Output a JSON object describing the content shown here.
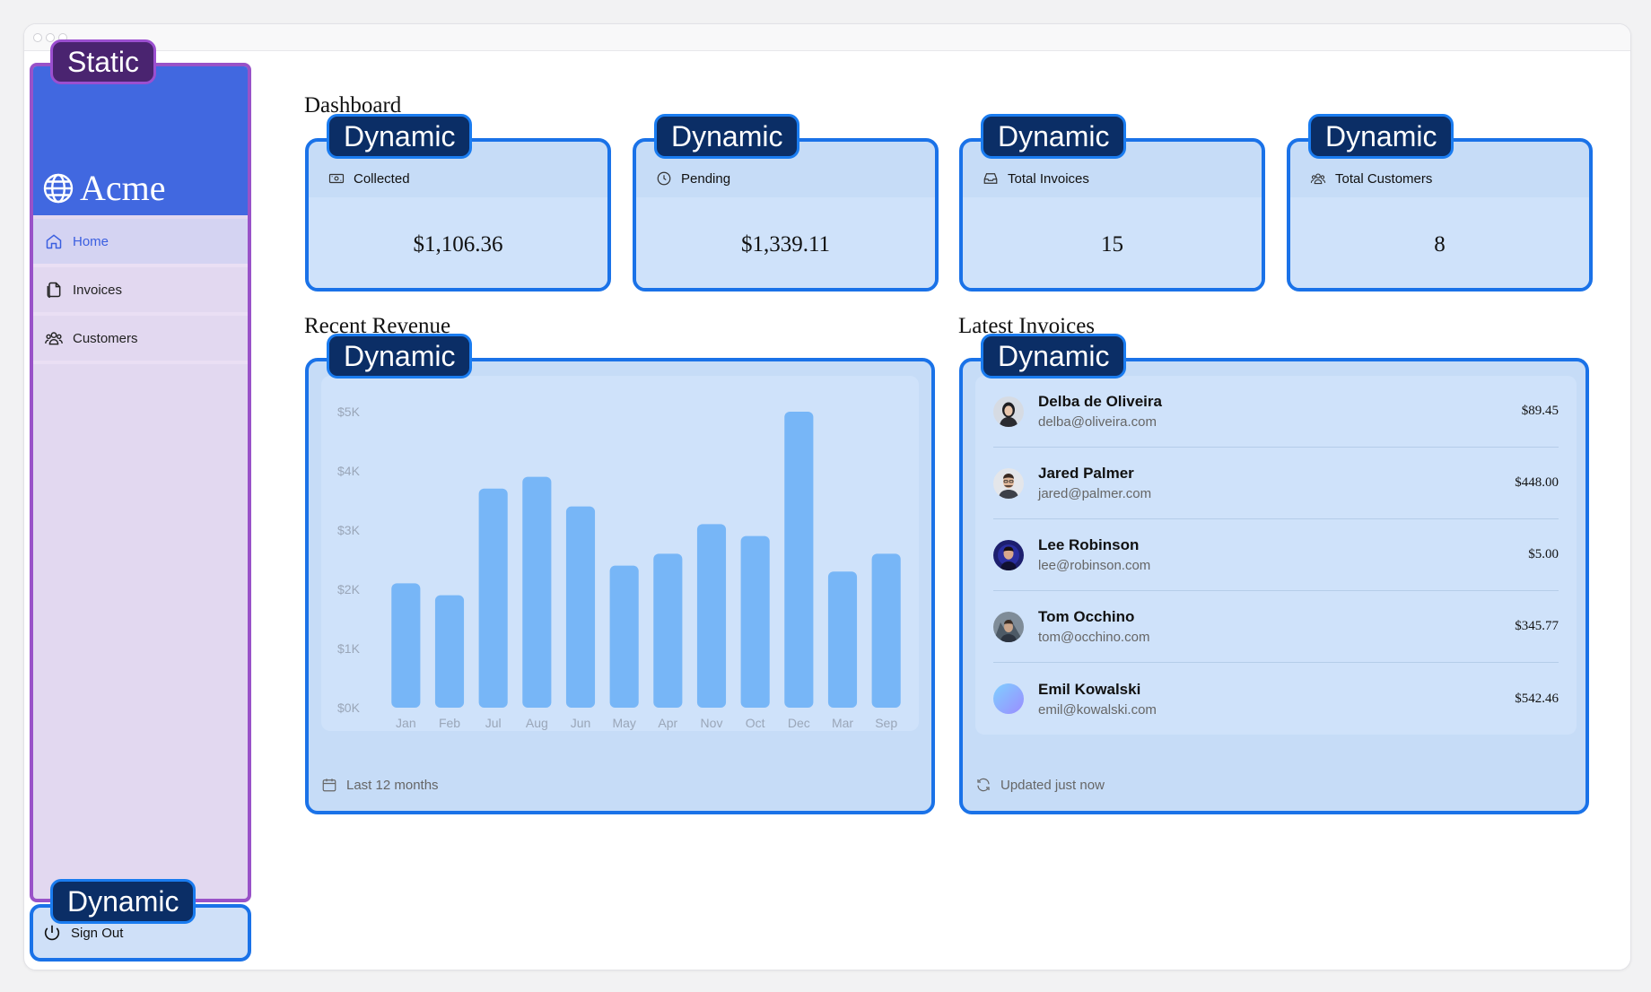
{
  "overlays": {
    "static": "Static",
    "dynamic": "Dynamic"
  },
  "sidebar": {
    "brand": "Acme",
    "items": [
      {
        "label": "Home",
        "icon": "home-icon"
      },
      {
        "label": "Invoices",
        "icon": "document-icon"
      },
      {
        "label": "Customers",
        "icon": "users-icon"
      }
    ],
    "sign_out": "Sign Out"
  },
  "main": {
    "title": "Dashboard",
    "cards": [
      {
        "label": "Collected",
        "value": "$1,106.36",
        "icon": "banknote-icon"
      },
      {
        "label": "Pending",
        "value": "$1,339.11",
        "icon": "clock-icon"
      },
      {
        "label": "Total Invoices",
        "value": "15",
        "icon": "inbox-icon"
      },
      {
        "label": "Total Customers",
        "value": "8",
        "icon": "users-icon"
      }
    ],
    "revenue": {
      "title": "Recent Revenue",
      "footer": "Last 12 months"
    },
    "latest": {
      "title": "Latest Invoices",
      "footer": "Updated just now",
      "rows": [
        {
          "name": "Delba de Oliveira",
          "email": "delba@oliveira.com",
          "amount": "$89.45"
        },
        {
          "name": "Jared Palmer",
          "email": "jared@palmer.com",
          "amount": "$448.00"
        },
        {
          "name": "Lee Robinson",
          "email": "lee@robinson.com",
          "amount": "$5.00"
        },
        {
          "name": "Tom Occhino",
          "email": "tom@occhino.com",
          "amount": "$345.77"
        },
        {
          "name": "Emil Kowalski",
          "email": "emil@kowalski.com",
          "amount": "$542.46"
        }
      ]
    }
  },
  "colors": {
    "bar": "#77b6f7",
    "accent": "#1a72e8",
    "static_outline": "#9952c8"
  },
  "chart_data": {
    "type": "bar",
    "categories": [
      "Jan",
      "Feb",
      "Jul",
      "Aug",
      "Jun",
      "May",
      "Apr",
      "Nov",
      "Oct",
      "Dec",
      "Mar",
      "Sep"
    ],
    "values": [
      2100,
      1900,
      3700,
      3900,
      3400,
      2400,
      2600,
      3100,
      2900,
      5000,
      2300,
      2600
    ],
    "y_ticks": [
      "$0K",
      "$1K",
      "$2K",
      "$3K",
      "$4K",
      "$5K"
    ],
    "ylim": [
      0,
      5000
    ],
    "grid": false,
    "title": "",
    "xlabel": "",
    "ylabel": ""
  }
}
